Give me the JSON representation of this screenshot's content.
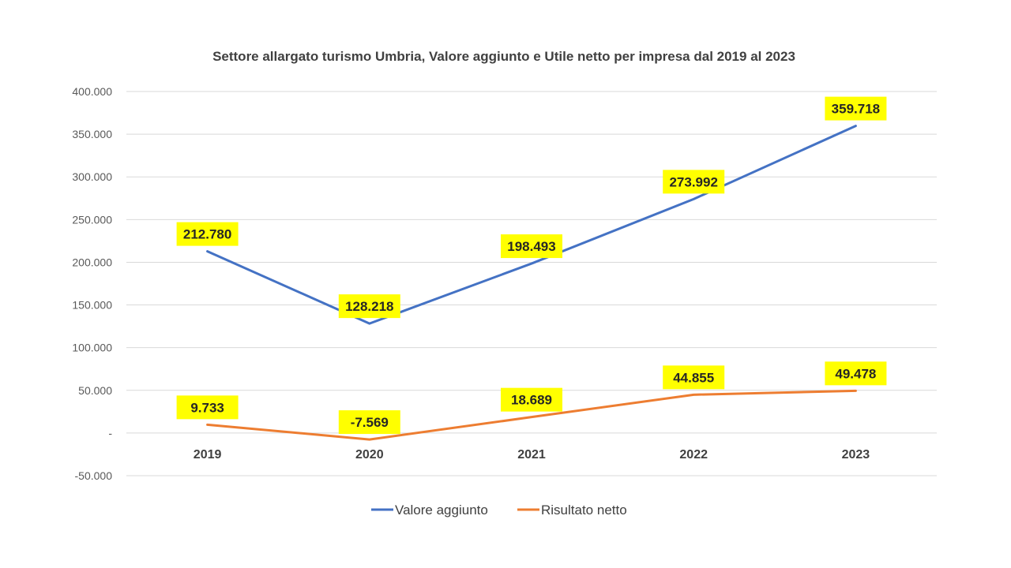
{
  "colors": {
    "valore_aggiunto": "#4472C4",
    "risultato_netto": "#ED7D31",
    "label_background": "#FFFF00"
  },
  "chart_data": {
    "type": "line",
    "title": "Settore allargato turismo Umbria, Valore aggiunto e Utile netto per impresa dal 2019 al 2023",
    "categories": [
      "2019",
      "2020",
      "2021",
      "2022",
      "2023"
    ],
    "ylim": [
      -50000,
      400000
    ],
    "yticks": [
      400000,
      350000,
      300000,
      250000,
      200000,
      150000,
      100000,
      50000,
      0,
      -50000
    ],
    "ytick_labels": [
      "400.000",
      "350.000",
      "300.000",
      "250.000",
      "200.000",
      "150.000",
      "100.000",
      "50.000",
      "-",
      "-50.000"
    ],
    "grid": true,
    "legend_position": "bottom",
    "series": [
      {
        "name": "Valore aggiunto",
        "values": [
          212780,
          128218,
          198493,
          273992,
          359718
        ],
        "labels": [
          "212.780",
          "128.218",
          "198.493",
          "273.992",
          "359.718"
        ]
      },
      {
        "name": "Risultato netto",
        "values": [
          9733,
          -7569,
          18689,
          44855,
          49478
        ],
        "labels": [
          "9.733",
          "-7.569",
          "18.689",
          "44.855",
          "49.478"
        ]
      }
    ]
  }
}
